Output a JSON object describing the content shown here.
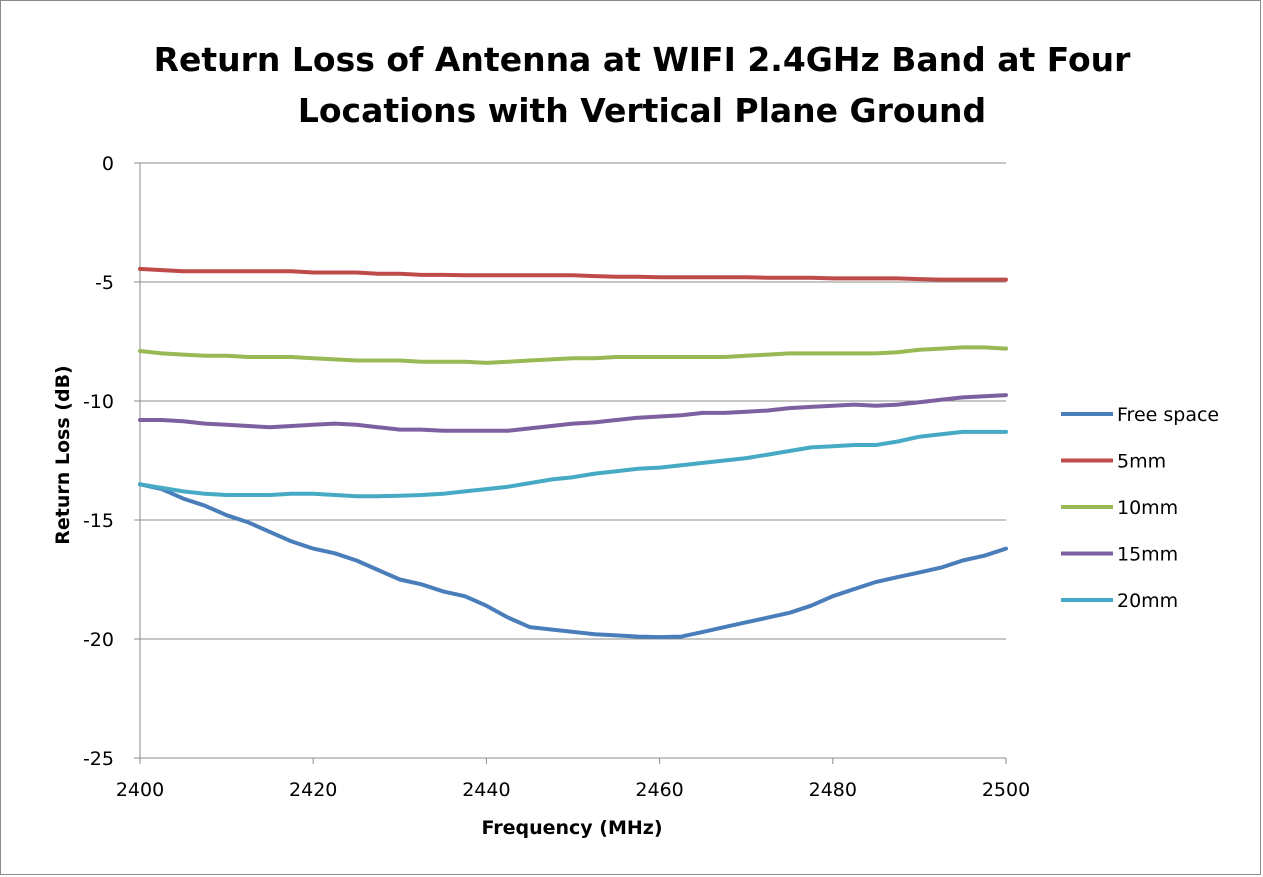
{
  "chart_data": {
    "type": "line",
    "title_lines": [
      "Return Loss of Antenna at WIFI 2.4GHz Band at Four",
      "Locations with Vertical Plane Ground"
    ],
    "xlabel": "Frequency (MHz)",
    "ylabel": "Return Loss (dB)",
    "xlim": [
      2400,
      2500
    ],
    "ylim": [
      -25,
      0
    ],
    "xticks": [
      2400,
      2420,
      2440,
      2460,
      2480,
      2500
    ],
    "yticks": [
      0,
      -5,
      -10,
      -15,
      -20,
      -25
    ],
    "grid": "horizontal",
    "legend_position": "right",
    "x": [
      2400,
      2402.5,
      2405,
      2407.5,
      2410,
      2412.5,
      2415,
      2417.5,
      2420,
      2422.5,
      2425,
      2427.5,
      2430,
      2432.5,
      2435,
      2437.5,
      2440,
      2442.5,
      2445,
      2447.5,
      2450,
      2452.5,
      2455,
      2457.5,
      2460,
      2462.5,
      2465,
      2467.5,
      2470,
      2472.5,
      2475,
      2477.5,
      2480,
      2482.5,
      2485,
      2487.5,
      2490,
      2492.5,
      2495,
      2497.5,
      2500
    ],
    "series": [
      {
        "name": "Free space",
        "color": "#4a7ebb",
        "values": [
          -13.5,
          -13.7,
          -14.1,
          -14.4,
          -14.8,
          -15.1,
          -15.5,
          -15.9,
          -16.2,
          -16.4,
          -16.7,
          -17.1,
          -17.5,
          -17.7,
          -18.0,
          -18.2,
          -18.6,
          -19.1,
          -19.5,
          -19.6,
          -19.7,
          -19.8,
          -19.85,
          -19.9,
          -19.92,
          -19.9,
          -19.7,
          -19.5,
          -19.3,
          -19.1,
          -18.9,
          -18.6,
          -18.2,
          -17.9,
          -17.6,
          -17.4,
          -17.2,
          -17.0,
          -16.7,
          -16.5,
          -16.2
        ]
      },
      {
        "name": "5mm",
        "color": "#be4b48",
        "values": [
          -4.45,
          -4.5,
          -4.55,
          -4.55,
          -4.55,
          -4.55,
          -4.55,
          -4.55,
          -4.6,
          -4.6,
          -4.6,
          -4.65,
          -4.65,
          -4.7,
          -4.7,
          -4.72,
          -4.72,
          -4.72,
          -4.72,
          -4.72,
          -4.72,
          -4.75,
          -4.78,
          -4.78,
          -4.8,
          -4.8,
          -4.8,
          -4.8,
          -4.8,
          -4.82,
          -4.82,
          -4.82,
          -4.85,
          -4.85,
          -4.85,
          -4.85,
          -4.88,
          -4.9,
          -4.9,
          -4.9,
          -4.9
        ]
      },
      {
        "name": "10mm",
        "color": "#98b954",
        "values": [
          -7.9,
          -8.0,
          -8.05,
          -8.1,
          -8.1,
          -8.15,
          -8.15,
          -8.15,
          -8.2,
          -8.25,
          -8.3,
          -8.3,
          -8.3,
          -8.35,
          -8.35,
          -8.35,
          -8.4,
          -8.35,
          -8.3,
          -8.25,
          -8.2,
          -8.2,
          -8.15,
          -8.15,
          -8.15,
          -8.15,
          -8.15,
          -8.15,
          -8.1,
          -8.05,
          -8.0,
          -8.0,
          -8.0,
          -8.0,
          -8.0,
          -7.95,
          -7.85,
          -7.8,
          -7.75,
          -7.75,
          -7.8
        ]
      },
      {
        "name": "15mm",
        "color": "#7d60a0",
        "values": [
          -10.8,
          -10.8,
          -10.85,
          -10.95,
          -11.0,
          -11.05,
          -11.1,
          -11.05,
          -11.0,
          -10.95,
          -11.0,
          -11.1,
          -11.2,
          -11.2,
          -11.25,
          -11.25,
          -11.25,
          -11.25,
          -11.15,
          -11.05,
          -10.95,
          -10.9,
          -10.8,
          -10.7,
          -10.65,
          -10.6,
          -10.5,
          -10.5,
          -10.45,
          -10.4,
          -10.3,
          -10.25,
          -10.2,
          -10.15,
          -10.2,
          -10.15,
          -10.05,
          -9.95,
          -9.85,
          -9.8,
          -9.75
        ]
      },
      {
        "name": "20mm",
        "color": "#46aac5",
        "values": [
          -13.5,
          -13.65,
          -13.8,
          -13.9,
          -13.95,
          -13.95,
          -13.95,
          -13.9,
          -13.9,
          -13.95,
          -14.0,
          -14.0,
          -13.98,
          -13.95,
          -13.9,
          -13.8,
          -13.7,
          -13.6,
          -13.45,
          -13.3,
          -13.2,
          -13.05,
          -12.95,
          -12.85,
          -12.8,
          -12.7,
          -12.6,
          -12.5,
          -12.4,
          -12.25,
          -12.1,
          -11.95,
          -11.9,
          -11.85,
          -11.85,
          -11.7,
          -11.5,
          -11.4,
          -11.3,
          -11.3,
          -11.3
        ]
      }
    ]
  }
}
